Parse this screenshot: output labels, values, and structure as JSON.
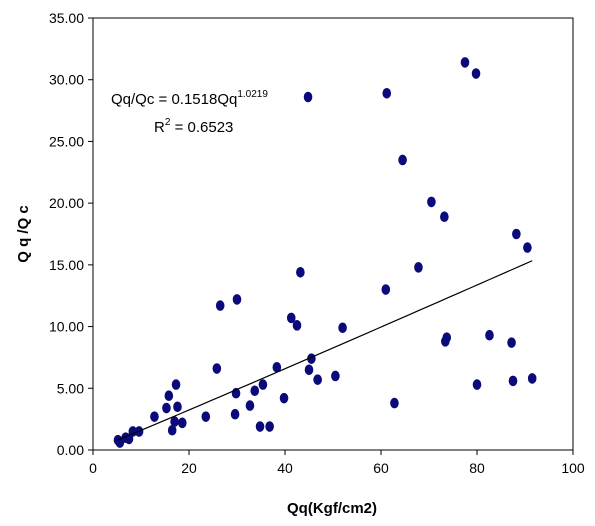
{
  "chart_data": {
    "type": "scatter",
    "title": "",
    "xlabel": "Qq(Kgf/cm2)",
    "ylabel": "Q q /Q c",
    "xlim": [
      0,
      100
    ],
    "ylim": [
      0,
      35
    ],
    "x_ticks": [
      "0",
      "20",
      "40",
      "60",
      "80",
      "100"
    ],
    "y_ticks": [
      "0.00",
      "5.00",
      "10.00",
      "15.00",
      "20.00",
      "25.00",
      "30.00",
      "35.00"
    ],
    "grid": false,
    "marker_color": "#0a0a7a",
    "trendline": {
      "type": "power",
      "coefficient": 0.1518,
      "exponent": 1.0219,
      "x_range": [
        5,
        91.5
      ],
      "equation_label": {
        "main": "Qq/Qc = 0.1518Qq",
        "superscript": "1.0219"
      },
      "r2_label": {
        "prefix": "R",
        "superscript": "2",
        "suffix": " = 0.6523"
      }
    },
    "series": [
      {
        "x": [
          5.2,
          5.6,
          6.8,
          7.5,
          8.3,
          9.6,
          12.8,
          15.3,
          15.8,
          16.5,
          17.0,
          17.3,
          17.6,
          18.6,
          23.5,
          25.8,
          26.5,
          29.6,
          29.8,
          30.0,
          32.7,
          33.7,
          34.8,
          35.4,
          36.8,
          38.3,
          39.8,
          41.3,
          42.5,
          43.2,
          44.8,
          45.0,
          45.5,
          46.8,
          50.5,
          52.0,
          61.0,
          61.2,
          62.8,
          64.5,
          67.8,
          70.5,
          73.2,
          73.4,
          73.7,
          77.5,
          79.8,
          80.0,
          82.6,
          87.2,
          87.5,
          88.2,
          90.5,
          91.5
        ],
        "y": [
          0.8,
          0.6,
          1.0,
          0.9,
          1.5,
          1.5,
          2.7,
          3.4,
          4.4,
          1.6,
          2.3,
          5.3,
          3.5,
          2.2,
          2.7,
          6.6,
          11.7,
          2.9,
          4.6,
          12.2,
          3.6,
          4.8,
          1.9,
          5.3,
          1.9,
          6.7,
          4.2,
          10.7,
          10.1,
          14.4,
          28.6,
          6.5,
          7.4,
          5.7,
          6.0,
          9.9,
          13.0,
          28.9,
          3.8,
          23.5,
          14.8,
          20.1,
          18.9,
          8.8,
          9.1,
          31.4,
          30.5,
          5.3,
          9.3,
          8.7,
          5.6,
          17.5,
          16.4,
          5.8
        ]
      }
    ]
  }
}
